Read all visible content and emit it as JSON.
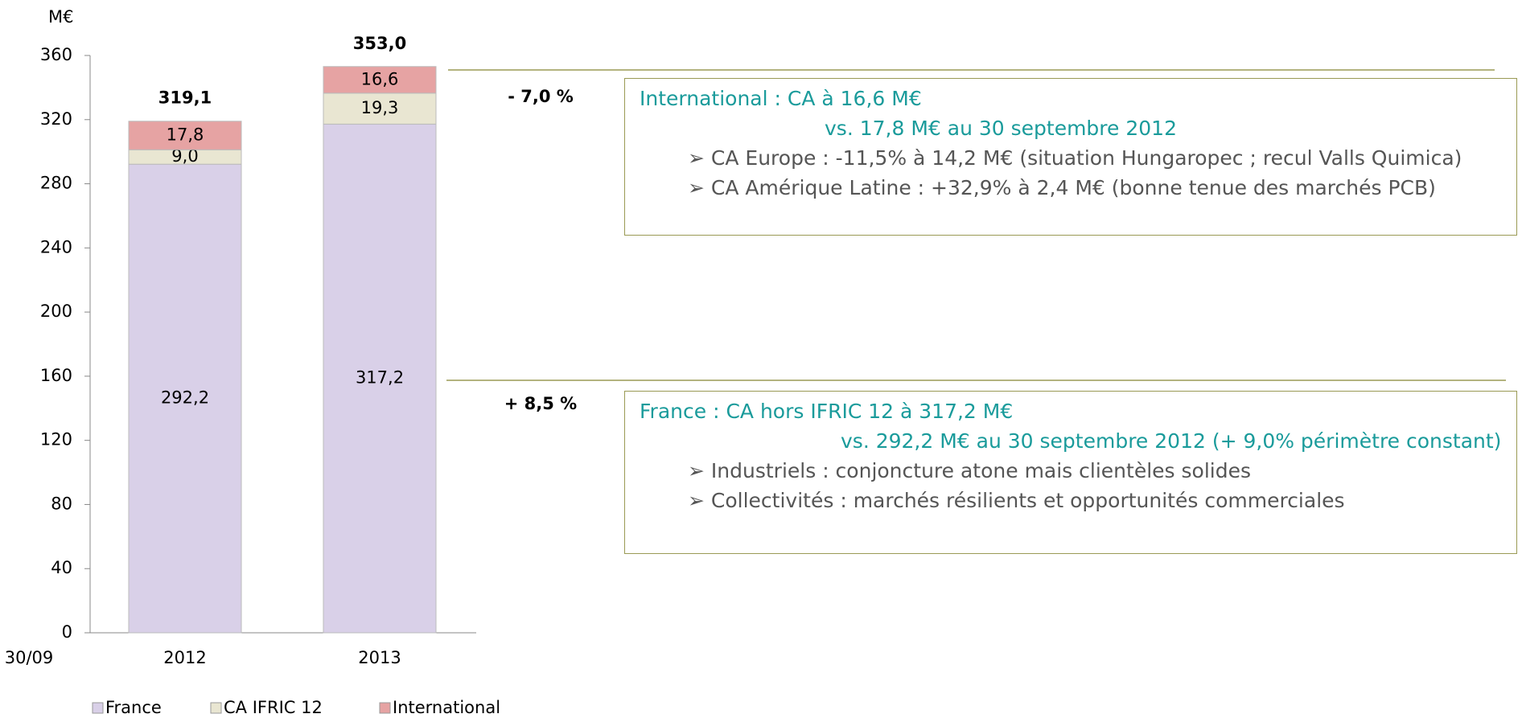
{
  "chart_data": {
    "type": "stacked_bar",
    "y_label": "M€",
    "x_label": "30/09",
    "categories": [
      "2012",
      "2013"
    ],
    "series": [
      {
        "name": "France",
        "color": "#d9d0e8",
        "values": [
          292.2,
          317.2
        ],
        "value_labels": [
          "292,2",
          "317,2"
        ]
      },
      {
        "name": "CA IFRIC 12",
        "color": "#e9e6d2",
        "values": [
          9.0,
          19.3
        ],
        "value_labels": [
          "9,0",
          "19,3"
        ]
      },
      {
        "name": "International",
        "color": "#e6a3a3",
        "values": [
          17.8,
          16.6
        ],
        "value_labels": [
          "17,8",
          "16,6"
        ]
      }
    ],
    "totals": [
      319.1,
      353.0
    ],
    "total_labels": [
      "319,1",
      "353,0"
    ],
    "ylim": [
      0,
      360
    ],
    "yticks": [
      0,
      40,
      80,
      120,
      160,
      200,
      240,
      280,
      320,
      360
    ],
    "annotations": [
      "- 7,0 %",
      "+ 8,5 %"
    ]
  },
  "boxes": [
    {
      "title": "International : CA à 16,6 M€",
      "subtitle": "vs. 17,8 M€ au 30 septembre 2012",
      "bullets": [
        "CA Europe : -11,5% à 14,2 M€ (situation Hungaropec ; recul Valls Quimica)",
        "CA Amérique Latine : +32,9% à 2,4 M€ (bonne tenue des marchés PCB)"
      ]
    },
    {
      "title": "France : CA hors IFRIC 12 à 317,2 M€",
      "subtitle": "vs. 292,2 M€ au 30 septembre 2012 (+ 9,0% périmètre constant)",
      "bullets": [
        "Industriels : conjoncture atone mais clientèles solides",
        "Collectivités : marchés résilients et opportunités commerciales"
      ]
    }
  ]
}
